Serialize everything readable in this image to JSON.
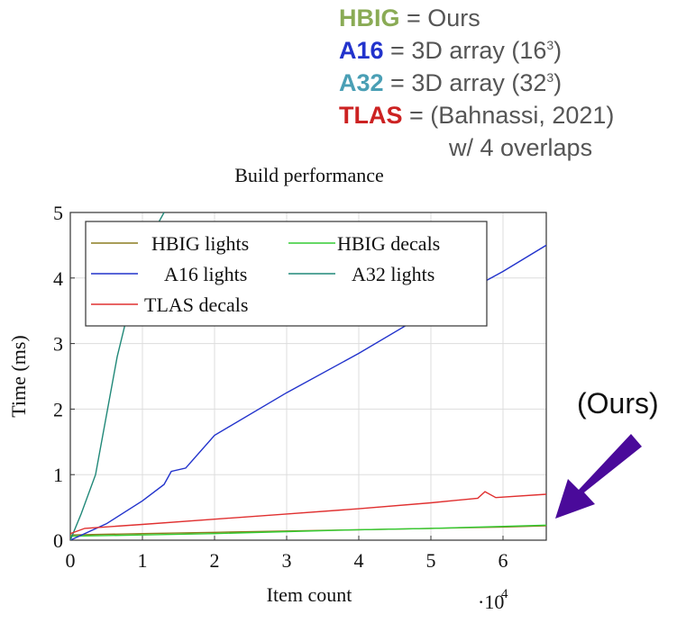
{
  "key_legend": [
    {
      "key": "HBIG",
      "desc": "= Ours",
      "color": "#8aab55"
    },
    {
      "key": "A16",
      "desc": "= 3D array (16",
      "sup": "3",
      "tail": ")",
      "color": "#2233cc"
    },
    {
      "key": "A32",
      "desc": "= 3D array (32",
      "sup": "3",
      "tail": ")",
      "color": "#4a9fb5"
    },
    {
      "key": "TLAS",
      "desc": "= (Bahnassi, 2021)",
      "color": "#cc2222"
    }
  ],
  "key_legend_cont": "w/ 4 overlaps",
  "annotation": "(Ours)",
  "colors": {
    "hbig_lights": "#8b7d20",
    "hbig_decals": "#33cc33",
    "a16": "#2233cc",
    "a32": "#208878",
    "tlas": "#e03030",
    "arrow": "#4a0a9a"
  },
  "chart_data": {
    "type": "line",
    "title": "Build performance",
    "xlabel": "Item count",
    "ylabel": "Time (ms)",
    "x_multiplier": "·10",
    "x_multiplier_exp": "4",
    "xlim": [
      0,
      6.6
    ],
    "ylim": [
      0,
      5
    ],
    "x_ticks": [
      "0",
      "1",
      "2",
      "3",
      "4",
      "5",
      "6"
    ],
    "y_ticks": [
      "0",
      "1",
      "2",
      "3",
      "4",
      "5"
    ],
    "grid": true,
    "legend_position": "top-left",
    "series": [
      {
        "name": "HBIG lights",
        "x": [
          0,
          1,
          2,
          3,
          4,
          5,
          6,
          6.6
        ],
        "y": [
          0.08,
          0.1,
          0.12,
          0.14,
          0.16,
          0.18,
          0.2,
          0.22
        ]
      },
      {
        "name": "HBIG decals",
        "x": [
          0,
          1,
          2,
          3,
          4,
          5,
          6,
          6.6
        ],
        "y": [
          0.06,
          0.08,
          0.1,
          0.13,
          0.16,
          0.18,
          0.21,
          0.23
        ]
      },
      {
        "name": "A16 lights",
        "x": [
          0,
          0.5,
          1,
          1.3,
          1.4,
          1.6,
          2,
          3,
          4,
          5,
          6,
          6.6
        ],
        "y": [
          0,
          0.25,
          0.6,
          0.85,
          1.05,
          1.1,
          1.6,
          2.25,
          2.85,
          3.5,
          4.1,
          4.5
        ]
      },
      {
        "name": "A32 lights",
        "x": [
          0,
          0.15,
          0.35,
          0.5,
          0.65,
          0.85,
          1.0,
          1.2,
          1.3
        ],
        "y": [
          0,
          0.4,
          1.0,
          1.9,
          2.8,
          3.7,
          4.2,
          4.8,
          5.0
        ]
      },
      {
        "name": "TLAS decals",
        "x": [
          0,
          0.2,
          1,
          2,
          3,
          4,
          5,
          5.65,
          5.75,
          5.9,
          6.6
        ],
        "y": [
          0.1,
          0.18,
          0.24,
          0.32,
          0.4,
          0.48,
          0.57,
          0.64,
          0.74,
          0.65,
          0.7
        ]
      }
    ]
  }
}
